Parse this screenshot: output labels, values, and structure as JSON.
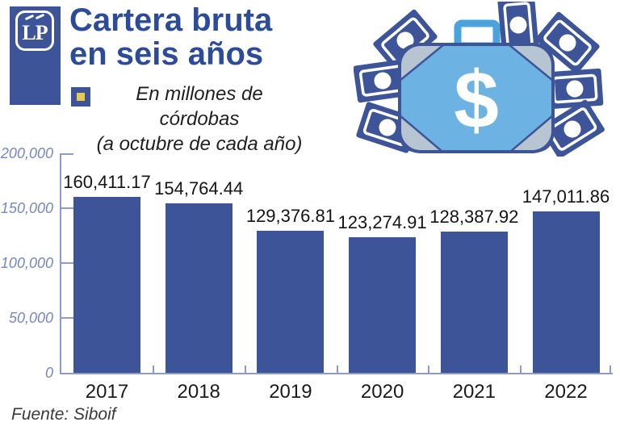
{
  "logo": {
    "text": "LP"
  },
  "header": {
    "title_line1": "Cartera bruta",
    "title_line2": "en seis años",
    "subtitle_line1": "En millones de córdobas",
    "subtitle_line2": "(a octubre de cada año)"
  },
  "footer": {
    "source": "Fuente: Siboif"
  },
  "colors": {
    "bar_blue": "#3d5499",
    "title_blue": "#2c4c9a",
    "axis_blue": "#8c9bcc",
    "axis_label_blue": "#7586c5",
    "legend_yellow": "#eac94e",
    "wallet_light_blue": "#6cb3e3",
    "wallet_corner_gray": "#b7c4d2"
  },
  "chart_data": {
    "type": "bar",
    "title": "Cartera bruta en seis años",
    "subtitle": "En millones de córdobas (a octubre de cada año)",
    "categories": [
      "2017",
      "2018",
      "2019",
      "2020",
      "2021",
      "2022"
    ],
    "values": [
      160411.17,
      154764.44,
      129376.81,
      123274.91,
      128387.92,
      147011.86
    ],
    "value_labels": [
      "160,411.17",
      "154,764.44",
      "129,376.81",
      "123,274.91",
      "128,387.92",
      "147,011.86"
    ],
    "xlabel": "",
    "ylabel": "",
    "ylim": [
      0,
      200000
    ],
    "ytick_labels": [
      "200,000",
      "150,000",
      "100,000",
      "50,000",
      "0"
    ],
    "grid": false,
    "legend_position": "none",
    "source": "Fuente: Siboif"
  }
}
